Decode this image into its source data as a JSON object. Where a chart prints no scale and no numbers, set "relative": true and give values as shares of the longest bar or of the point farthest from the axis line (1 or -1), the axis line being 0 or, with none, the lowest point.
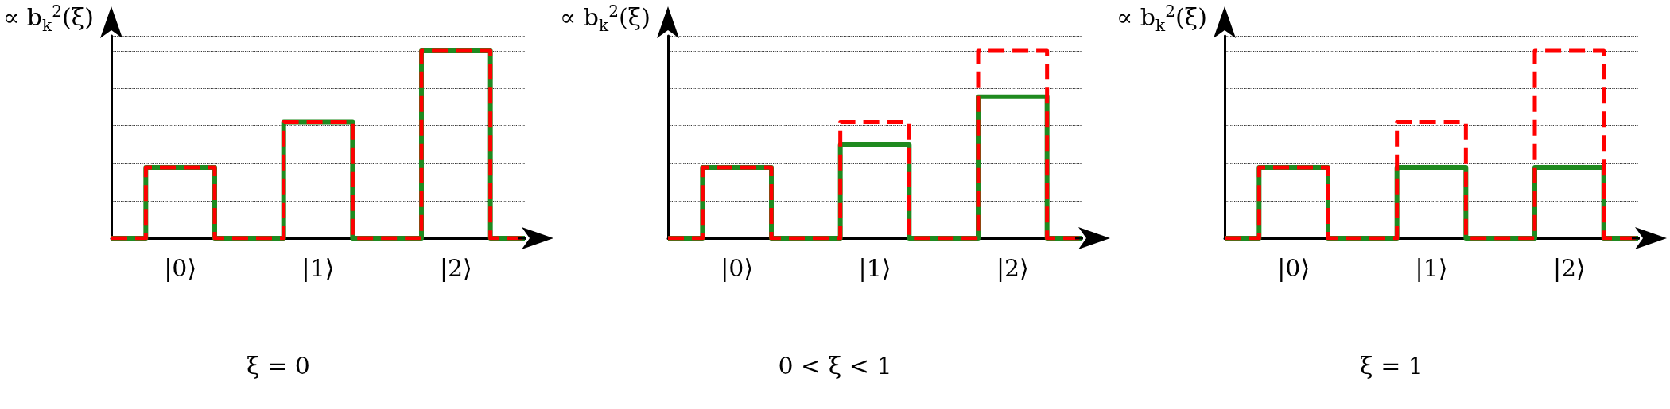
{
  "chart_data": [
    {
      "type": "step",
      "ylabel": "∝ b$_{k}$$^{2}$(ξ)",
      "xlabel": "ξ = 0",
      "categories": [
        null,
        "|0⟩",
        null,
        "|1⟩",
        null,
        "|2⟩",
        null
      ],
      "relative": true,
      "grid": "y",
      "series": [
        {
          "color": "#1f8a1f",
          "line_style": "solid",
          "values": [
            0,
            0.377,
            0,
            0.62,
            0,
            1,
            0
          ]
        },
        {
          "color": "#ff0000",
          "line_style": "dashed",
          "values": [
            0,
            0.377,
            0,
            0.62,
            0,
            1,
            0
          ]
        }
      ]
    },
    {
      "type": "step",
      "ylabel": "∝ b$_{k}$$^{2}$(ξ)",
      "xlabel": "0 < ξ < 1",
      "categories": [
        null,
        "|0⟩",
        null,
        "|1⟩",
        null,
        "|2⟩",
        null
      ],
      "relative": true,
      "grid": "y",
      "series": [
        {
          "color": "#1f8a1f",
          "line_style": "solid",
          "values": [
            0,
            0.377,
            0,
            0.5,
            0,
            0.755,
            0
          ]
        },
        {
          "color": "#ff0000",
          "line_style": "dashed",
          "values": [
            0,
            0.377,
            0,
            0.62,
            0,
            1,
            0
          ]
        }
      ]
    },
    {
      "type": "step",
      "ylabel": "∝ b$_{k}$$^{2}$(ξ)",
      "xlabel": "ξ = 1",
      "categories": [
        null,
        "|0⟩",
        null,
        "|1⟩",
        null,
        "|2⟩",
        null
      ],
      "relative": true,
      "grid": "y",
      "series": [
        {
          "color": "#1f8a1f",
          "line_style": "solid",
          "values": [
            0,
            0.377,
            0,
            0.377,
            0,
            0.377,
            0
          ]
        },
        {
          "color": "#ff0000",
          "line_style": "dashed",
          "values": [
            0,
            0.377,
            0,
            0.62,
            0,
            1,
            0
          ]
        }
      ]
    }
  ]
}
